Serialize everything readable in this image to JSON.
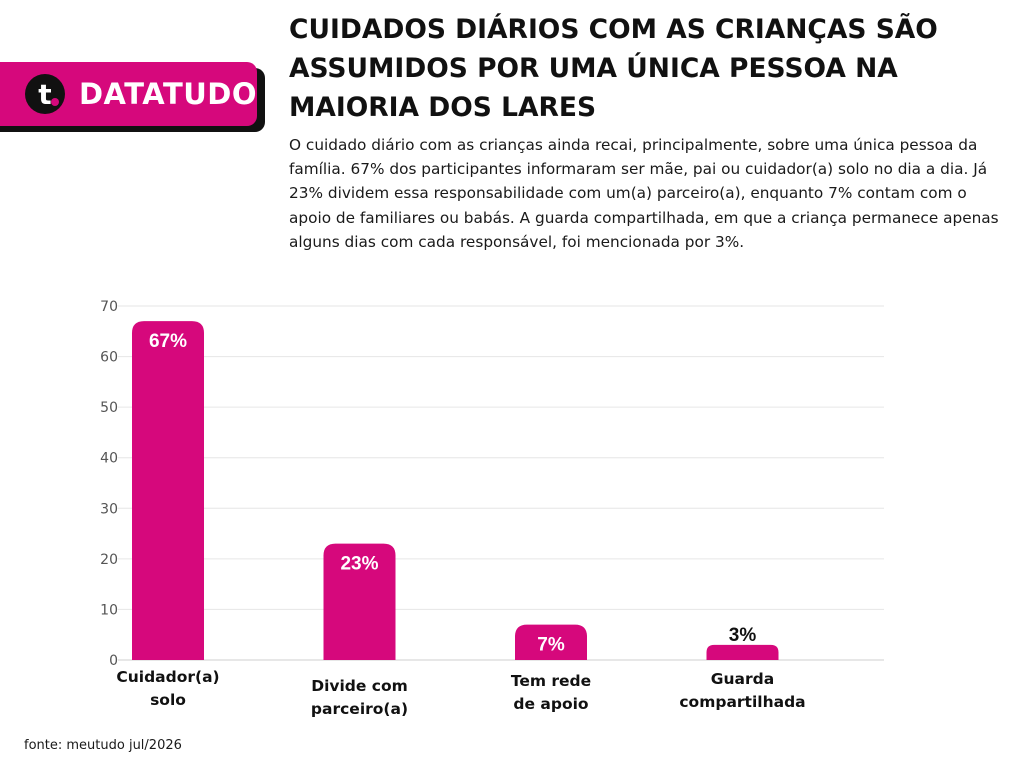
{
  "brand": {
    "name": "DATATUDO",
    "logo_letter": "t",
    "color": "#d6087c"
  },
  "title": "CUIDADOS DIÁRIOS COM AS CRIANÇAS SÃO ASSUMIDOS POR UMA ÚNICA PESSOA NA MAIORIA DOS LARES",
  "description": "O cuidado diário com as crianças ainda recai, principalmente, sobre uma única pessoa da família. 67% dos participantes informaram ser mãe, pai ou cuidador(a) solo no dia a dia. Já 23% dividem essa responsabilidade com um(a) parceiro(a), enquanto 7% contam com o apoio de familiares ou babás. A guarda compartilhada, em que a criança permanece apenas alguns dias com cada responsável, foi mencionada por 3%.",
  "source": "fonte: meutudo jul/2026",
  "chart_data": {
    "type": "bar",
    "categories": [
      [
        "Cuidador(a)",
        "solo"
      ],
      [
        "Divide com",
        "parceiro(a)"
      ],
      [
        "Tem rede",
        "de apoio"
      ],
      [
        "Guarda",
        "compartilhada"
      ]
    ],
    "values": [
      67,
      23,
      7,
      3
    ],
    "data_labels": [
      "67%",
      "23%",
      "7%",
      "3%"
    ],
    "yticks": [
      "0",
      "10",
      "20",
      "30",
      "40",
      "50",
      "60",
      "70"
    ],
    "ylim": [
      0,
      70
    ],
    "grid": true,
    "bar_color": "#d6087c"
  }
}
